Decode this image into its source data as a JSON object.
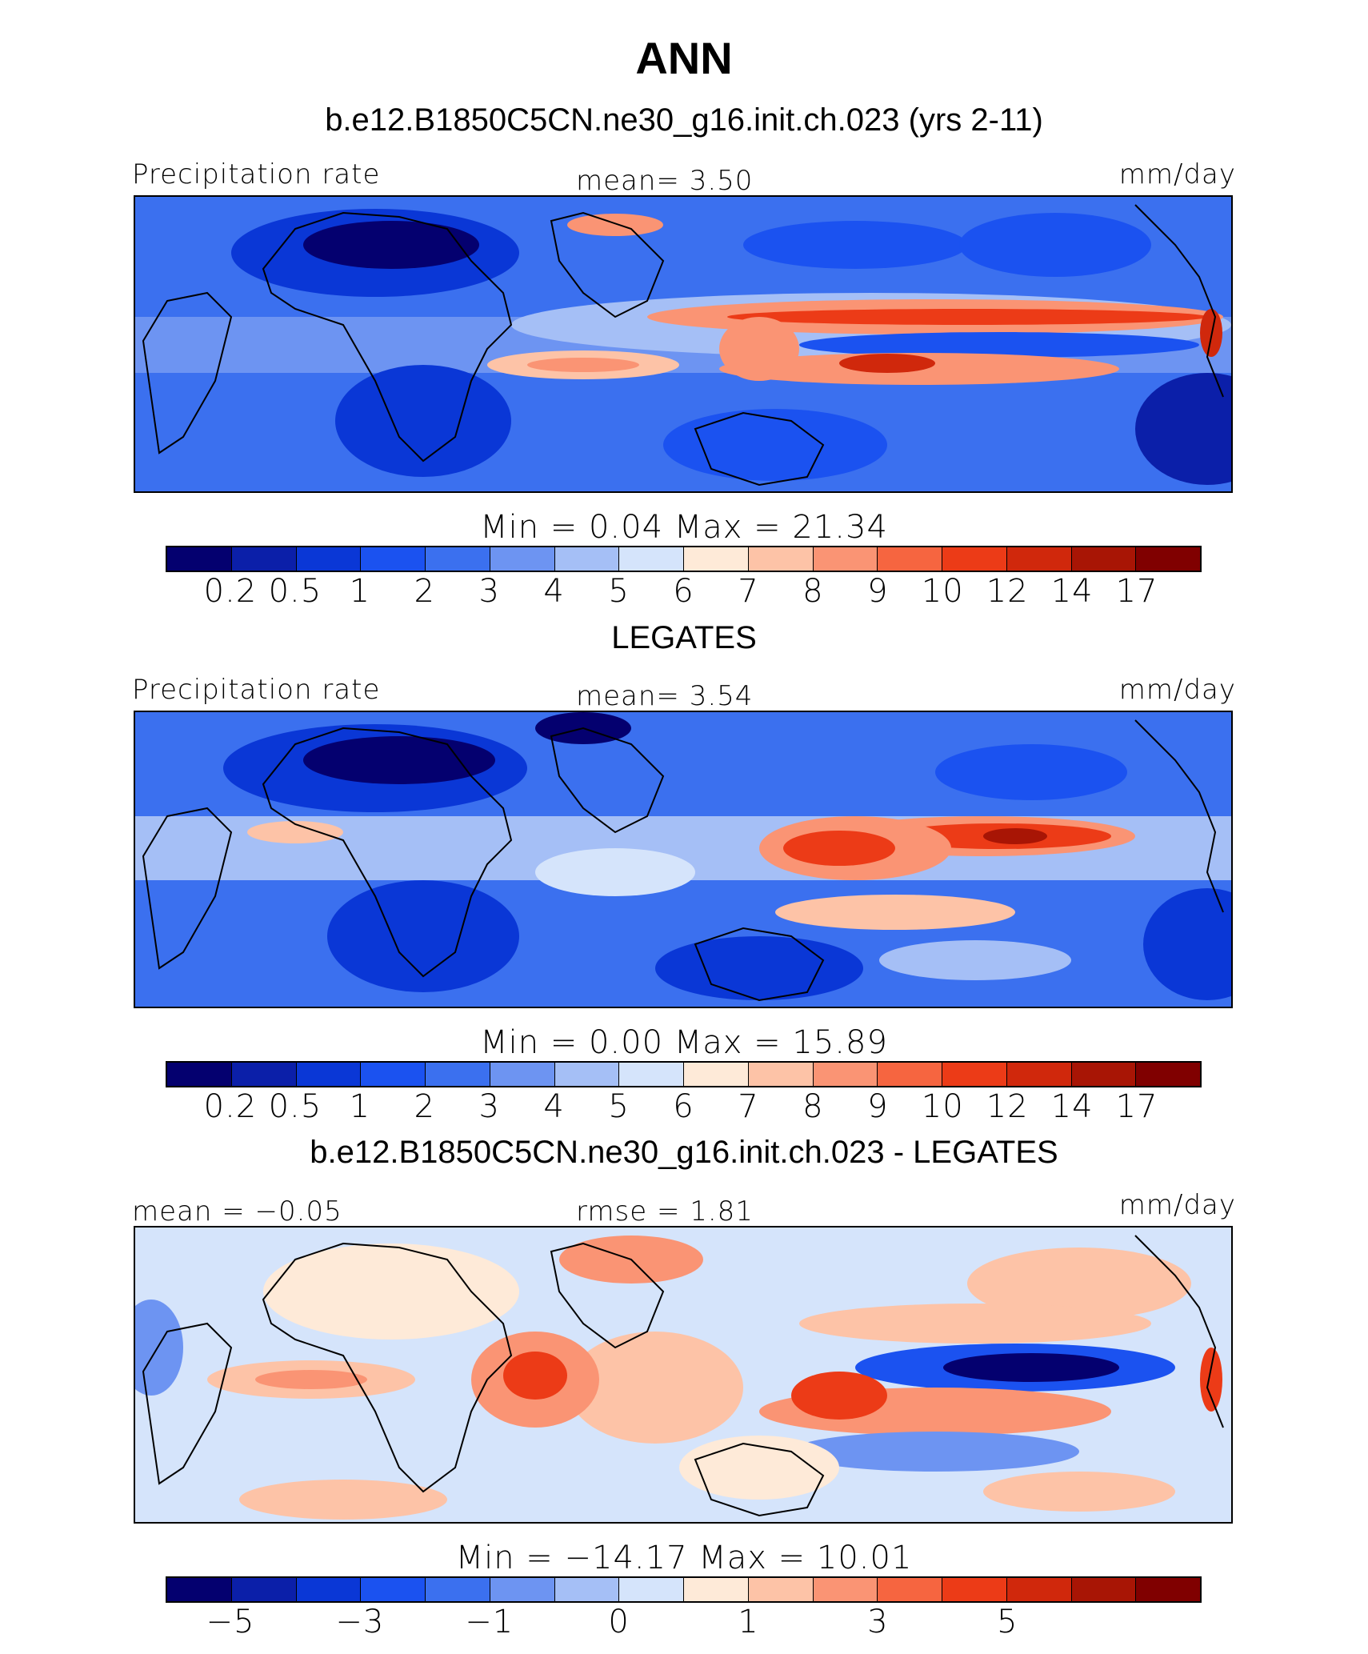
{
  "title": "ANN",
  "palette": [
    "#04006f",
    "#0b1fa9",
    "#0a37d6",
    "#1b52f0",
    "#3b70ef",
    "#6d94f2",
    "#a5bff6",
    "#d5e4fb",
    "#feead8",
    "#fdc3a7",
    "#fa9474",
    "#f66540",
    "#ec3b17",
    "#d0280c",
    "#a81505",
    "#800000"
  ],
  "panels": [
    {
      "id": "model",
      "subtitle": "b.e12.B1850C5CN.ne30_g16.init.ch.023 (yrs 2-11)",
      "left_label": "Precipitation rate",
      "center_label": "mean=    3.50",
      "right_label": "mm/day",
      "minmax": "Min  =     0.04  Max  =    21.34",
      "ticks": [
        "0.2",
        "0.5",
        "1",
        "2",
        "3",
        "4",
        "5",
        "6",
        "7",
        "8",
        "9",
        "10",
        "12",
        "14",
        "17"
      ]
    },
    {
      "id": "obs",
      "subtitle": "LEGATES",
      "left_label": "Precipitation rate",
      "center_label": "mean=    3.54",
      "right_label": "mm/day",
      "minmax": "Min  =     0.00  Max  =    15.89",
      "ticks": [
        "0.2",
        "0.5",
        "1",
        "2",
        "3",
        "4",
        "5",
        "6",
        "7",
        "8",
        "9",
        "10",
        "12",
        "14",
        "17"
      ]
    },
    {
      "id": "diff",
      "subtitle": "b.e12.B1850C5CN.ne30_g16.init.ch.023 - LEGATES",
      "left_label": "mean  =   −0.05",
      "center_label": "rmse  =     1.81",
      "right_label": "mm/day",
      "minmax": "Min  =  −14.17  Max  =    10.01",
      "ticks": [
        "−5",
        "−3",
        "−1",
        "0",
        "1",
        "3",
        "5"
      ]
    }
  ]
}
